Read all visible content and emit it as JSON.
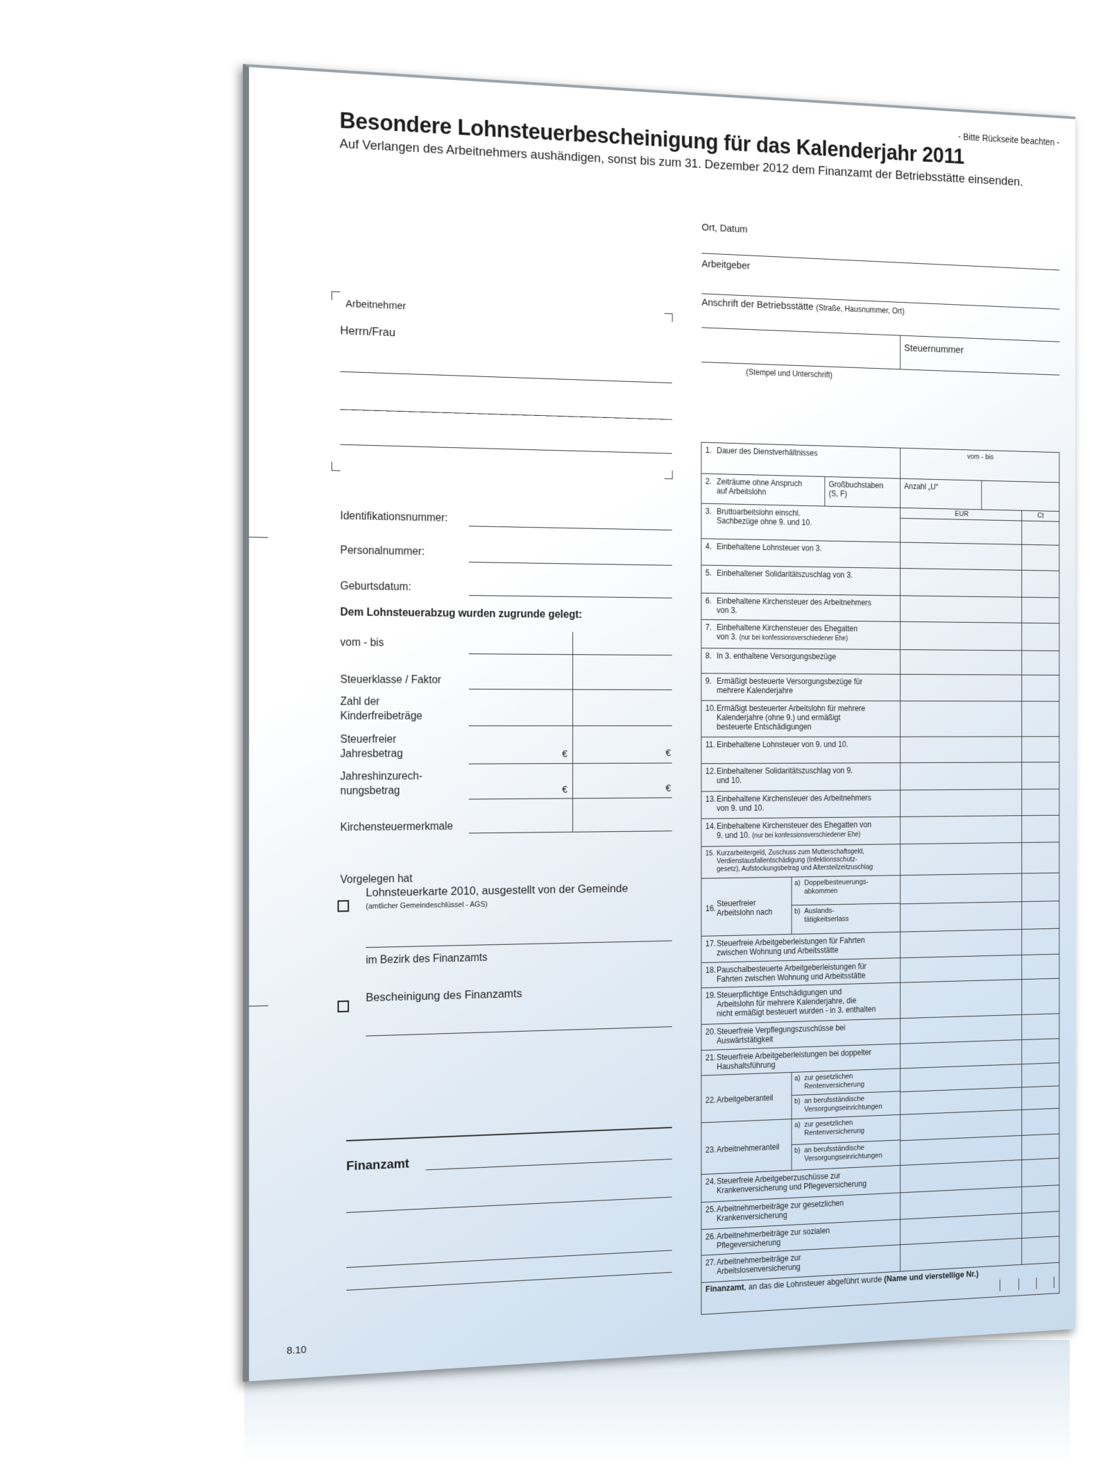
{
  "header": {
    "notice": "- Bitte Rückseite beachten -",
    "title": "Besondere Lohnsteuerbescheinigung für das Kalenderjahr 2011",
    "subtitle": "Auf Verlangen des Arbeitnehmers aushändigen, sonst bis zum 31. Dezember 2012 dem Finanzamt der Betriebsstätte einsenden."
  },
  "employer": {
    "place_date": "Ort, Datum",
    "employer": "Arbeitgeber",
    "address": "Anschrift der Betriebsstätte",
    "address_note": "(Straße, Hausnummer, Ort)",
    "tax_number": "Steuernummer",
    "stamp": "(Stempel und Unterschrift)"
  },
  "employee": {
    "label": "Arbeitnehmer",
    "salutation": "Herrn/Frau"
  },
  "ids": [
    {
      "label": "Identifikationsnummer:"
    },
    {
      "label": "Personalnummer:"
    },
    {
      "label": "Geburtsdatum:"
    }
  ],
  "basis": {
    "heading": "Dem Lohnsteuerabzug wurden zugrunde gelegt:",
    "currency_symbol": "€",
    "rows": [
      {
        "label": "vom - bis"
      },
      {
        "label": "Steuerklasse / Faktor"
      },
      {
        "label": "Zahl der\nKinderfreibeträge"
      },
      {
        "label": "Steuerfreier\nJahresbetrag"
      },
      {
        "label": "Jahreshinzurech-\nnungsbetrag"
      },
      {
        "label": "Kirchensteuermerkmale"
      }
    ]
  },
  "presented": {
    "heading": "Vorgelegen hat",
    "option1": "Lohnsteuerkarte 2010, ausgestellt von der Gemeinde",
    "option1_note": "(amtlicher Gemeindeschlüssel - AGS)",
    "district": "im Bezirk des Finanzamts",
    "option2": "Bescheinigung des Finanzamts",
    "checked1": false,
    "checked2": false
  },
  "signature": {
    "finanzamt": "Finanzamt"
  },
  "version": "8.10",
  "table": {
    "period_header": "vom - bis",
    "eur": "EUR",
    "ct": "Ct",
    "rows": [
      {
        "num": "1.",
        "label": "Dauer des Dienstverhältnisses"
      },
      {
        "num": "2.",
        "label": "Zeiträume ohne Anspruch\nauf Arbeitslohn",
        "sub": "Großbuchstaben\n(S, F)",
        "count_label": "Anzahl „U“"
      },
      {
        "num": "3.",
        "label": "Bruttoarbeitslohn einschl.\nSachbezüge ohne 9. und 10."
      },
      {
        "num": "4.",
        "label": "Einbehaltene Lohnsteuer von 3."
      },
      {
        "num": "5.",
        "label": "Einbehaltener Solidaritätszuschlag von 3."
      },
      {
        "num": "6.",
        "label": "Einbehaltene Kirchensteuer des Arbeitnehmers\nvon 3."
      },
      {
        "num": "7.",
        "label": "Einbehaltene Kirchensteuer des Ehegatten\nvon 3.",
        "note": "(nur bei konfessionsverschiedener Ehe)"
      },
      {
        "num": "8.",
        "label": "In 3. enthaltene Versorgungsbezüge"
      },
      {
        "num": "9.",
        "label": "Ermäßigt besteuerte Versorgungsbezüge für\nmehrere Kalenderjahre"
      },
      {
        "num": "10.",
        "label": "Ermäßigt besteuerter Arbeitslohn für mehrere\nKalenderjahre (ohne 9.) und ermäßigt\nbesteuerte Entschädigungen"
      },
      {
        "num": "11.",
        "label": "Einbehaltene Lohnsteuer von 9. und 10."
      },
      {
        "num": "12.",
        "label": "Einbehaltener Solidaritätszuschlag von 9.\nund 10."
      },
      {
        "num": "13.",
        "label": "Einbehaltene Kirchensteuer des Arbeitnehmers\nvon 9. und 10."
      },
      {
        "num": "14.",
        "label": "Einbehaltene Kirchensteuer des Ehegatten von\n9. und 10.",
        "note": "(nur bei konfessionsverschiedener Ehe)"
      },
      {
        "num": "15.",
        "label": "Kurzarbeitergeld, Zuschuss zum Mutterschaftsgeld,\nVerdienstausfallentschädigung (Infektionsschutz-\ngesetz), Aufstockungsbetrag und Altersteilzeitzuschlag",
        "small": true
      },
      {
        "num": "16.",
        "label": "Steuerfreier\nArbeitslohn nach",
        "parts": [
          {
            "key": "a)",
            "label": "Doppelbesteuerungs-\nabkommen"
          },
          {
            "key": "b)",
            "label": "Auslands-\ntätigkeitserlass"
          }
        ]
      },
      {
        "num": "17.",
        "label": "Steuerfreie Arbeitgeberleistungen für Fahrten\nzwischen Wohnung und Arbeitsstätte"
      },
      {
        "num": "18.",
        "label": "Pauschalbesteuerte Arbeitgeberleistungen für\nFahrten zwischen Wohnung und Arbeitsstätte"
      },
      {
        "num": "19.",
        "label": "Steuerpflichtige Entschädigungen und\nArbeitslohn für mehrere Kalenderjahre, die\nnicht ermäßigt besteuert wurden - in 3. enthalten"
      },
      {
        "num": "20.",
        "label": "Steuerfreie Verpflegungszuschüsse bei\nAuswärtstätigkeit"
      },
      {
        "num": "21.",
        "label": "Steuerfreie Arbeitgeberleistungen bei doppelter\nHaushaltsführung"
      },
      {
        "num": "22.",
        "label": "Arbeitgeberanteil",
        "parts": [
          {
            "key": "a)",
            "label": "zur gesetzlichen\nRentenversicherung"
          },
          {
            "key": "b)",
            "label": "an berufsständische\nVersorgungseinrichtungen"
          }
        ]
      },
      {
        "num": "23.",
        "label": "Arbeitnehmeranteil",
        "parts": [
          {
            "key": "a)",
            "label": "zur gesetzlichen\nRentenversicherung"
          },
          {
            "key": "b)",
            "label": "an berufsständische\nVersorgungseinrichtungen"
          }
        ]
      },
      {
        "num": "24.",
        "label": "Steuerfreie Arbeitgeberzuschüsse zur\nKrankenversicherung und Pflegeversicherung"
      },
      {
        "num": "25.",
        "label": "Arbeitnehmerbeiträge zur gesetzlichen\nKrankenversicherung"
      },
      {
        "num": "26.",
        "label": "Arbeitnehmerbeiträge zur sozialen\nPflegeversicherung"
      },
      {
        "num": "27.",
        "label": "Arbeitnehmerbeiträge zur\nArbeitslosenversicherung"
      }
    ],
    "footer": {
      "label": "Finanzamt",
      "text": ", an das die Lohnsteuer abgeführt wurde ",
      "note": "(Name und vierstellige Nr.)"
    }
  }
}
